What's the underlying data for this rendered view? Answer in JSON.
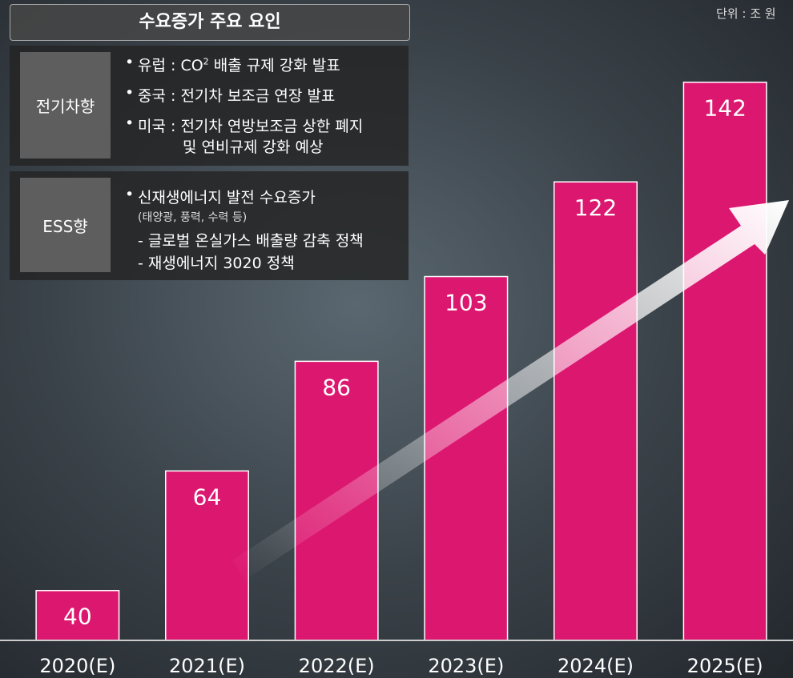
{
  "chart_data": {
    "type": "bar",
    "categories": [
      "2020(E)",
      "2021(E)",
      "2022(E)",
      "2023(E)",
      "2024(E)",
      "2025(E)"
    ],
    "values": [
      40,
      64,
      86,
      103,
      122,
      142
    ],
    "color": "#dc1770",
    "ylim": [
      30,
      158.5
    ]
  },
  "unit": "단위 : 조 원",
  "panel": {
    "title": "수요증가 주요 요인",
    "sections": [
      {
        "label": "전기차향",
        "lines": [
          {
            "before": "유럽 : CO",
            "sup": "2",
            "after": " 배출 규제 강화 발표"
          },
          {
            "text": "중국 : 전기차 보조금 연장 발표"
          },
          {
            "text": "미국 : 전기차 연방보조금 상한 폐지"
          },
          {
            "text": "및 연비규제 강화 예상"
          }
        ]
      },
      {
        "label": "ESS향",
        "lines": [
          {
            "text": "신재생에너지 발전 수요증가"
          },
          {
            "text": "(태양광, 풍력, 수력 등)"
          },
          {
            "text": "- 글로벌 온실가스 배출량 감축 정책"
          },
          {
            "text": "- 재생에너지 3020 정책"
          }
        ]
      }
    ]
  }
}
